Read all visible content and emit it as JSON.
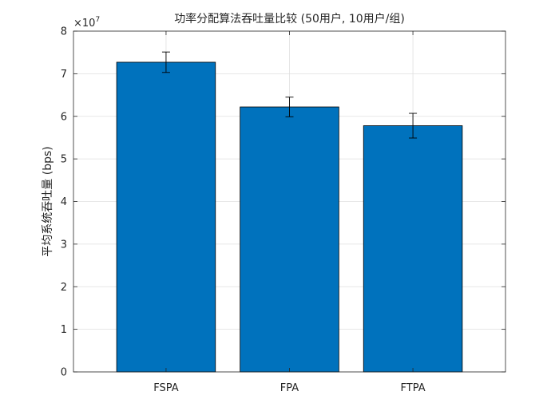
{
  "chart_data": {
    "type": "bar",
    "title": "功率分配算法吞吐量比较 (50用户, 10用户/组)",
    "xlabel": "",
    "ylabel": "平均系统吞吐量 (bps)",
    "categories": [
      "FSPA",
      "FPA",
      "FTPA"
    ],
    "values": [
      72700000,
      62200000,
      57800000
    ],
    "error": [
      2400000,
      2300000,
      2900000
    ],
    "ylim": [
      0,
      80000000
    ],
    "xlim": [
      0.25,
      3.75
    ],
    "yticks": [
      0,
      1,
      2,
      3,
      4,
      5,
      6,
      7,
      8
    ],
    "ytick_labels": [
      "0",
      "1",
      "2",
      "3",
      "4",
      "5",
      "6",
      "7",
      "8"
    ],
    "exponent_base": "×10",
    "exponent_power": "7",
    "grid": true,
    "bar_color": "#0072BD",
    "edge_color": "#000000"
  }
}
